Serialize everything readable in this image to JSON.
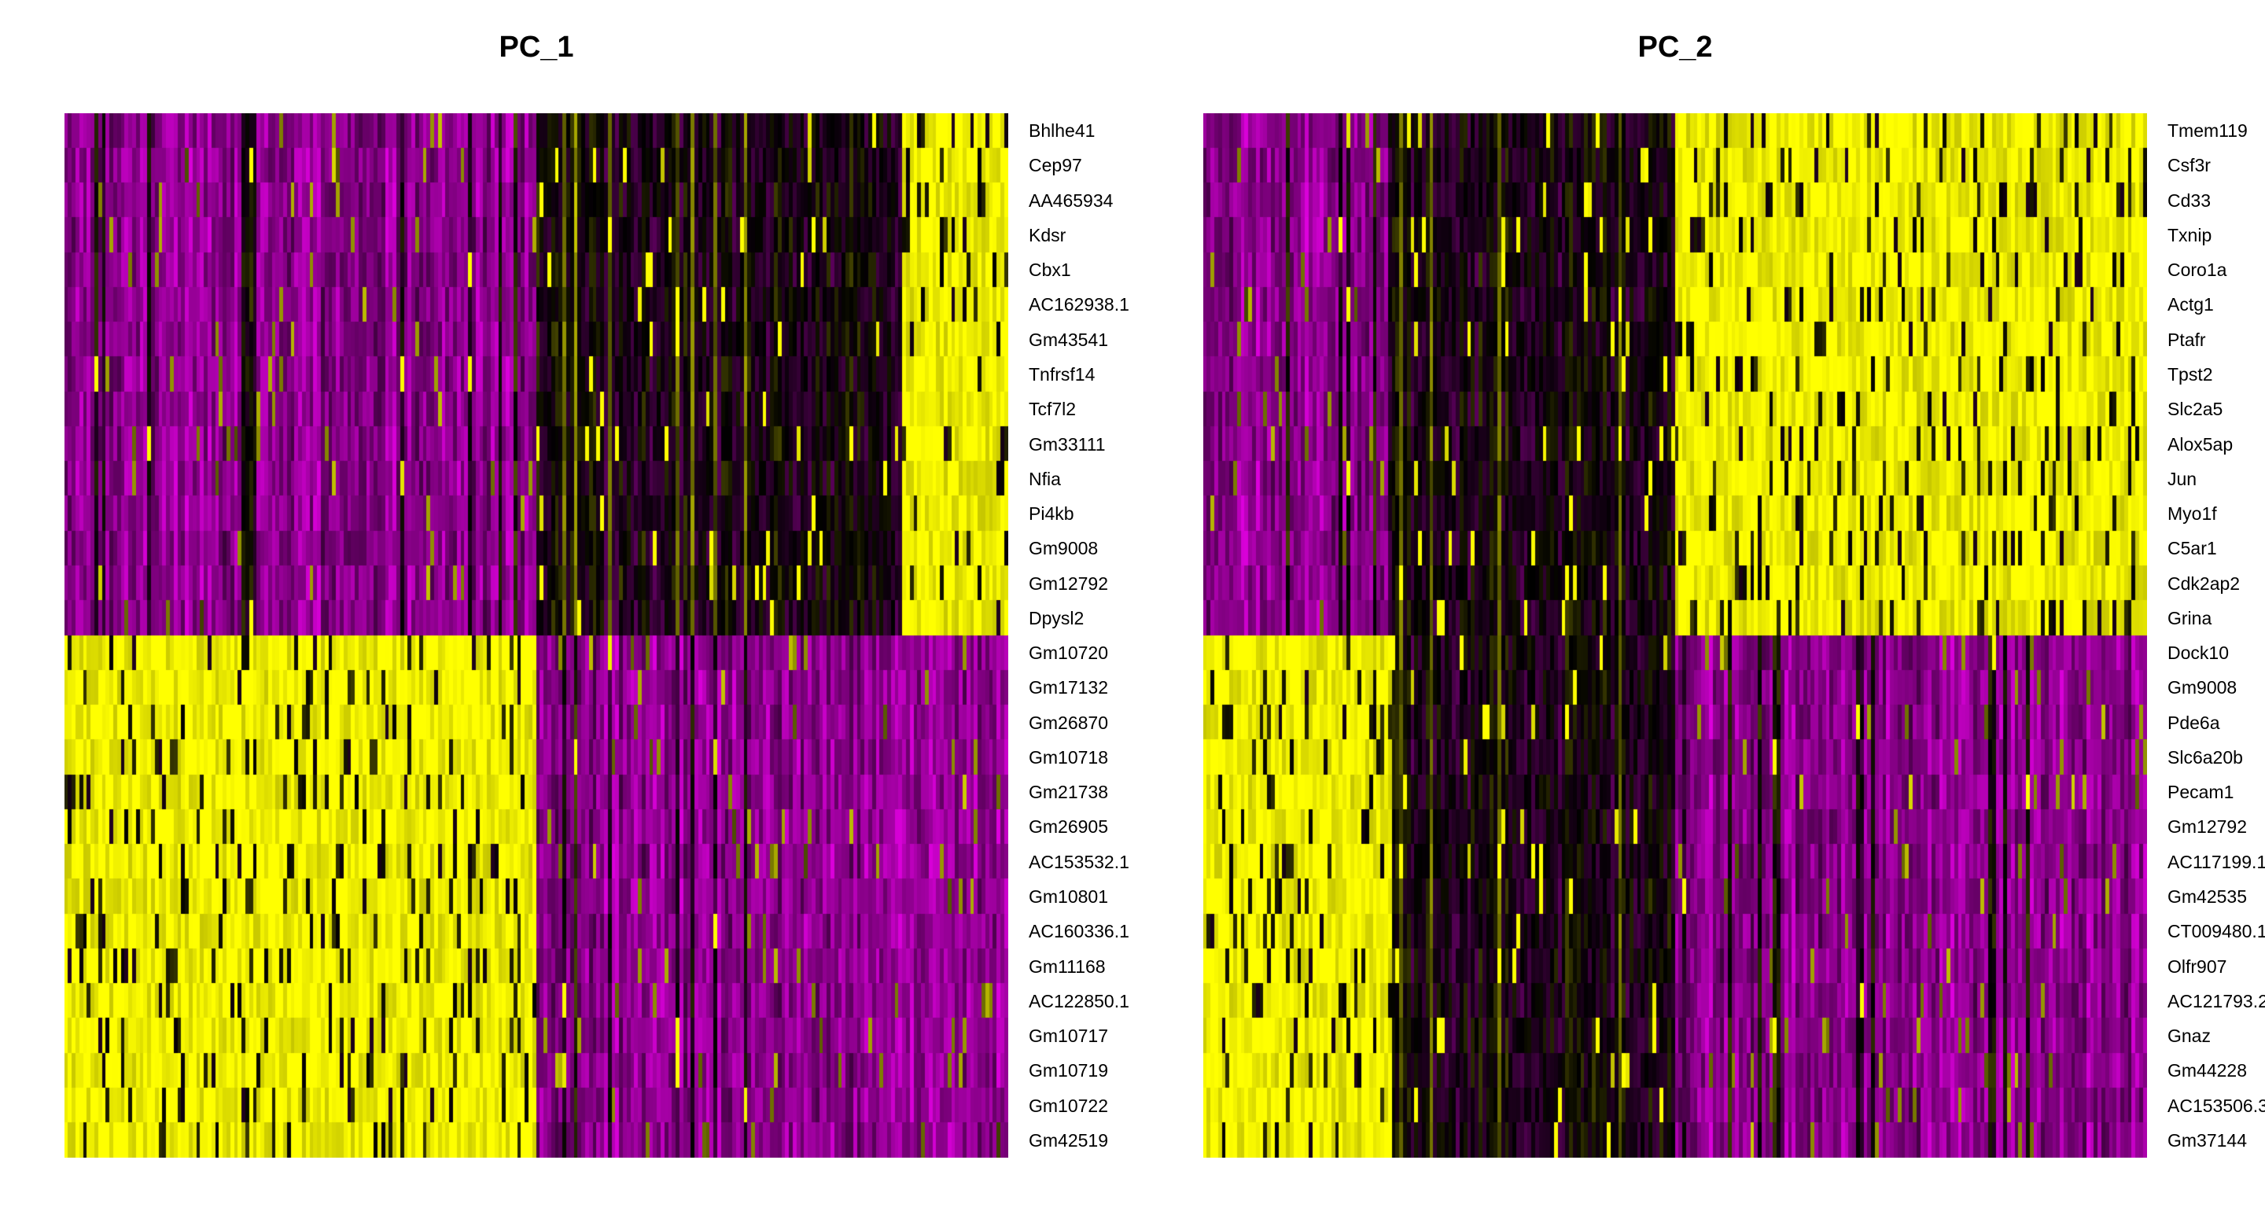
{
  "chart_data": [
    {
      "type": "heatmap",
      "title": "PC_1",
      "colors": {
        "low": "#FF00FF",
        "mid": "#000000",
        "high": "#FFFF00"
      },
      "n_cells": 250,
      "genes": [
        "Bhlhe41",
        "Cep97",
        "AA465934",
        "Kdsr",
        "Cbx1",
        "AC162938.1",
        "Gm43541",
        "Tnfrsf14",
        "Tcf7l2",
        "Gm33111",
        "Nfia",
        "Pi4kb",
        "Gm9008",
        "Gm12792",
        "Dpysl2",
        "Gm10720",
        "Gm17132",
        "Gm26870",
        "Gm10718",
        "Gm21738",
        "Gm26905",
        "AC153532.1",
        "Gm10801",
        "AC160336.1",
        "Gm11168",
        "AC122850.1",
        "Gm10717",
        "Gm10719",
        "Gm10722",
        "Gm42519"
      ],
      "blocks": [
        {
          "genes": "top",
          "cell_range": [
            0.0,
            0.5
          ],
          "expression": "low"
        },
        {
          "genes": "top",
          "cell_range": [
            0.5,
            0.89
          ],
          "expression": "mid"
        },
        {
          "genes": "top",
          "cell_range": [
            0.89,
            1.0
          ],
          "expression": "high"
        },
        {
          "genes": "bottom",
          "cell_range": [
            0.0,
            0.5
          ],
          "expression": "high"
        },
        {
          "genes": "bottom",
          "cell_range": [
            0.5,
            0.89
          ],
          "expression": "low"
        },
        {
          "genes": "bottom",
          "cell_range": [
            0.89,
            1.0
          ],
          "expression": "low"
        }
      ]
    },
    {
      "type": "heatmap",
      "title": "PC_2",
      "colors": {
        "low": "#FF00FF",
        "mid": "#000000",
        "high": "#FFFF00"
      },
      "n_cells": 250,
      "genes": [
        "Tmem119",
        "Csf3r",
        "Cd33",
        "Txnip",
        "Coro1a",
        "Actg1",
        "Ptafr",
        "Tpst2",
        "Slc2a5",
        "Alox5ap",
        "Jun",
        "Myo1f",
        "C5ar1",
        "Cdk2ap2",
        "Grina",
        "Dock10",
        "Gm9008",
        "Pde6a",
        "Slc6a20b",
        "Pecam1",
        "Gm12792",
        "AC117199.1",
        "Gm42535",
        "CT009480.1",
        "Olfr907",
        "AC121793.2",
        "Gnaz",
        "Gm44228",
        "AC153506.3",
        "Gm37144"
      ],
      "blocks": [
        {
          "genes": "top",
          "cell_range": [
            0.0,
            0.2
          ],
          "expression": "low"
        },
        {
          "genes": "top",
          "cell_range": [
            0.2,
            0.5
          ],
          "expression": "mid"
        },
        {
          "genes": "top",
          "cell_range": [
            0.5,
            1.0
          ],
          "expression": "high"
        },
        {
          "genes": "bottom",
          "cell_range": [
            0.0,
            0.2
          ],
          "expression": "high"
        },
        {
          "genes": "bottom",
          "cell_range": [
            0.2,
            0.5
          ],
          "expression": "mid"
        },
        {
          "genes": "bottom",
          "cell_range": [
            0.5,
            1.0
          ],
          "expression": "low"
        }
      ]
    }
  ]
}
